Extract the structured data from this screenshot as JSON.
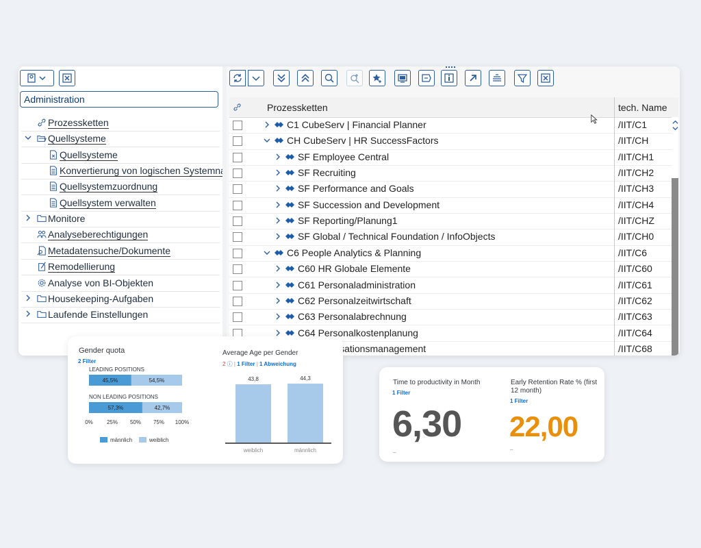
{
  "admin_field": "Administration",
  "tree": [
    {
      "label": "Prozessketten",
      "icon": "link-icon",
      "indent": 0,
      "chev": ""
    },
    {
      "label": "Quellsysteme",
      "icon": "open-folder-icon",
      "indent": 0,
      "chev": "down"
    },
    {
      "label": "Quellsysteme",
      "icon": "source-doc-icon",
      "indent": 1,
      "chev": ""
    },
    {
      "label": "Konvertierung von logischen Systemna",
      "icon": "doc-list-icon",
      "indent": 1,
      "chev": ""
    },
    {
      "label": "Quellsystemzuordnung",
      "icon": "doc-list-icon",
      "indent": 1,
      "chev": ""
    },
    {
      "label": "Quellsystem verwalten",
      "icon": "doc-list-icon",
      "indent": 1,
      "chev": ""
    },
    {
      "label": "Monitore",
      "icon": "folder-icon",
      "indent": 0,
      "chev": "right",
      "plain": true
    },
    {
      "label": "Analyseberechtigungen",
      "icon": "users-icon",
      "indent": 0,
      "chev": ""
    },
    {
      "label": "Metadatensuche/Dokumente",
      "icon": "doc-search-icon",
      "indent": 0,
      "chev": ""
    },
    {
      "label": "Remodellierung",
      "icon": "doc-edit-icon",
      "indent": 0,
      "chev": ""
    },
    {
      "label": "Analyse von BI-Objekten",
      "icon": "gear-icon",
      "indent": 0,
      "chev": "",
      "plain": true
    },
    {
      "label": "Housekeeping-Aufgaben",
      "icon": "folder-icon",
      "indent": 0,
      "chev": "right",
      "plain": true
    },
    {
      "label": "Laufende Einstellungen",
      "icon": "folder-icon",
      "indent": 0,
      "chev": "right",
      "plain": true
    }
  ],
  "grid": {
    "col_process": "Prozessketten",
    "col_tech": "tech. Name",
    "rows": [
      {
        "name": "C1 CubeServ | Financial Planner",
        "tech": "/IIT/C1",
        "level": 0,
        "chev": "right"
      },
      {
        "name": "CH CubeServ | HR SuccessFactors",
        "tech": "/IIT/CH",
        "level": 0,
        "chev": "down"
      },
      {
        "name": "SF Employee Central",
        "tech": "/IIT/CH1",
        "level": 1,
        "chev": "right"
      },
      {
        "name": "SF Recruiting",
        "tech": "/IIT/CH2",
        "level": 1,
        "chev": "right"
      },
      {
        "name": "SF Performance and Goals",
        "tech": "/IIT/CH3",
        "level": 1,
        "chev": "right"
      },
      {
        "name": "SF Succession and Development",
        "tech": "/IIT/CH4",
        "level": 1,
        "chev": "right"
      },
      {
        "name": "SF Reporting/Planung1",
        "tech": "/IIT/CHZ",
        "level": 1,
        "chev": "right"
      },
      {
        "name": "SF Global / Technical Foundation / InfoObjects",
        "tech": "/IIT/CH0",
        "level": 1,
        "chev": "right"
      },
      {
        "name": "C6 People Analytics & Planning",
        "tech": "/IIT/C6",
        "level": 0,
        "chev": "down"
      },
      {
        "name": "C60 HR Globale Elemente",
        "tech": "/IIT/C60",
        "level": 1,
        "chev": "right"
      },
      {
        "name": "C61 Personaladministration",
        "tech": "/IIT/C61",
        "level": 1,
        "chev": "right"
      },
      {
        "name": "C62 Personalzeitwirtschaft",
        "tech": "/IIT/C62",
        "level": 1,
        "chev": "right"
      },
      {
        "name": "C63 Personalabrechnung",
        "tech": "/IIT/C63",
        "level": 1,
        "chev": "right"
      },
      {
        "name": "C64 Personalkostenplanung",
        "tech": "/IIT/C64",
        "level": 1,
        "chev": "right"
      },
      {
        "name": "isationsmanagement",
        "tech": "/IIT/C68",
        "level": 1,
        "chev": ""
      }
    ]
  },
  "gender_card": {
    "title": "Gender quota",
    "filter": "2 Filter",
    "leading_label": "LEADING POSITIONS",
    "non_leading_label": "NON LEADING POSITIONS",
    "x_ticks": [
      "0%",
      "25%",
      "50%",
      "75%",
      "100%"
    ],
    "legend": [
      "männlich",
      "weiblich"
    ]
  },
  "age_card": {
    "title": "Average Age  per Gender",
    "count": "2",
    "filter": "1 Filter",
    "deviation": "1 Abweichung",
    "sep": "|"
  },
  "chart_data": [
    {
      "type": "bar",
      "orientation": "horizontal-stacked",
      "title": "Gender quota",
      "categories": [
        "LEADING POSITIONS",
        "NON LEADING POSITIONS"
      ],
      "series": [
        {
          "name": "männlich",
          "values": [
            45.5,
            57.3
          ],
          "labels": [
            "45,5%",
            "57,3%"
          ]
        },
        {
          "name": "weiblich",
          "values": [
            54.5,
            42.7
          ],
          "labels": [
            "54,5%",
            "42,7%"
          ]
        }
      ],
      "xlim": [
        0,
        100
      ],
      "colors": [
        "#4a9ad6",
        "#a7c9ea"
      ]
    },
    {
      "type": "bar",
      "title": "Average Age  per Gender",
      "categories": [
        "weiblich",
        "männlich"
      ],
      "values": [
        43.8,
        44.3
      ],
      "labels": [
        "43,8",
        "44,3"
      ],
      "color": "#a7c9ea"
    }
  ],
  "kpi": {
    "time_title": "Time to productivity in Month",
    "time_filter": "1 Filter",
    "time_value": "6,30",
    "time_dash": "–",
    "retention_title": "Early Retention Rate % (first 12 month)",
    "retention_filter": "1 Filter",
    "retention_value": "22,00",
    "retention_dash": "–",
    "value_color": "#e88f0c"
  }
}
